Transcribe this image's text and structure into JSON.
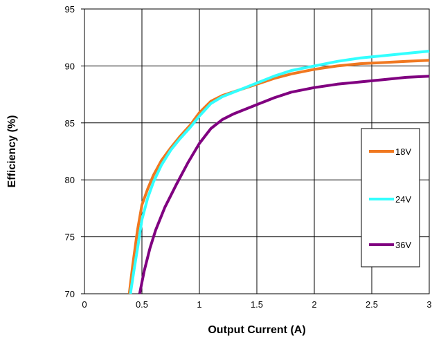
{
  "chart_data": {
    "type": "line",
    "title": "",
    "xlabel": "Output Current (A)",
    "ylabel": "Efficiency (%)",
    "xlim": [
      0,
      3
    ],
    "ylim": [
      70,
      95
    ],
    "xticks": [
      0,
      0.5,
      1,
      1.5,
      2,
      2.5,
      3
    ],
    "xtick_labels": [
      "0",
      "0.5",
      "1",
      "1.5",
      "2",
      "2.5",
      "3"
    ],
    "yticks": [
      70,
      75,
      80,
      85,
      90,
      95
    ],
    "ytick_labels": [
      "70",
      "75",
      "80",
      "85",
      "90",
      "95"
    ],
    "grid": true,
    "legend_position": "right",
    "series": [
      {
        "name": "18V",
        "color": "#f07820",
        "x": [
          0.39,
          0.42,
          0.46,
          0.5,
          0.55,
          0.6,
          0.67,
          0.75,
          0.83,
          0.92,
          1.0,
          1.1,
          1.2,
          1.35,
          1.5,
          1.65,
          1.8,
          2.0,
          2.2,
          2.4,
          2.6,
          2.8,
          3.0
        ],
        "y": [
          70.0,
          72.5,
          75.5,
          77.8,
          79.2,
          80.4,
          81.7,
          82.8,
          83.8,
          84.8,
          85.9,
          86.9,
          87.4,
          87.9,
          88.4,
          88.9,
          89.3,
          89.7,
          90.0,
          90.2,
          90.3,
          90.4,
          90.5
        ]
      },
      {
        "name": "24V",
        "color": "#33ffff",
        "x": [
          0.4,
          0.43,
          0.47,
          0.5,
          0.55,
          0.6,
          0.67,
          0.75,
          0.83,
          0.92,
          1.0,
          1.1,
          1.2,
          1.35,
          1.5,
          1.65,
          1.8,
          2.0,
          2.2,
          2.4,
          2.6,
          2.8,
          3.0
        ],
        "y": [
          70.0,
          72.0,
          74.5,
          76.5,
          78.4,
          79.8,
          81.3,
          82.6,
          83.6,
          84.6,
          85.6,
          86.7,
          87.3,
          87.9,
          88.5,
          89.1,
          89.6,
          90.0,
          90.4,
          90.7,
          90.9,
          91.1,
          91.3
        ]
      },
      {
        "name": "36V",
        "color": "#800080",
        "x": [
          0.48,
          0.52,
          0.57,
          0.62,
          0.7,
          0.8,
          0.9,
          1.0,
          1.1,
          1.2,
          1.3,
          1.4,
          1.5,
          1.65,
          1.8,
          2.0,
          2.2,
          2.4,
          2.6,
          2.8,
          3.0
        ],
        "y": [
          70.0,
          72.0,
          74.0,
          75.6,
          77.6,
          79.6,
          81.5,
          83.2,
          84.5,
          85.3,
          85.8,
          86.2,
          86.6,
          87.2,
          87.7,
          88.1,
          88.4,
          88.6,
          88.8,
          89.0,
          89.1
        ]
      }
    ]
  }
}
